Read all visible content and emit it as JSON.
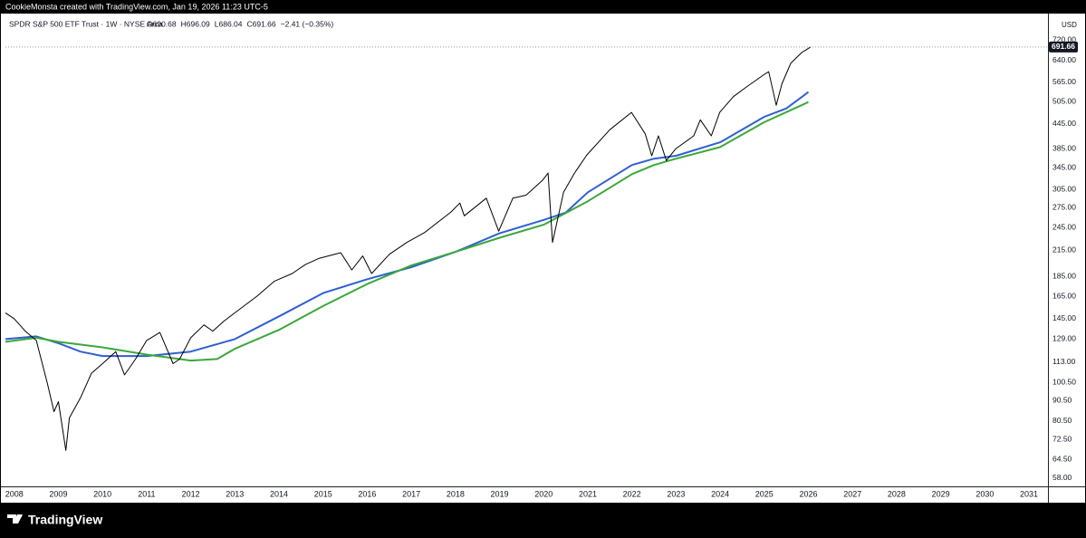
{
  "header": {
    "credit": "CookieMonsta created with TradingView.com, Jan 19, 2026 11:23 UTC-5"
  },
  "footer": {
    "brand": "TradingView"
  },
  "chart_data": {
    "type": "line",
    "title": "SPDR S&P 500 ETF Trust · 1W · NYSE Arca",
    "ohlc": [
      "O690.68",
      "H696.09",
      "L686.04",
      "C691.66",
      "−2.41 (−0.35%)"
    ],
    "currency": "USD",
    "last_price": {
      "value": 691.66,
      "label": "691.66"
    },
    "log_scale": true,
    "grid": false,
    "xlim": [
      2007.8,
      2031.43
    ],
    "xticks": [
      2008,
      2009,
      2010,
      2011,
      2012,
      2013,
      2014,
      2015,
      2016,
      2017,
      2018,
      2019,
      2020,
      2021,
      2022,
      2023,
      2024,
      2025,
      2026,
      2027,
      2028,
      2029,
      2030,
      2031
    ],
    "ylim": [
      55.3,
      834
    ],
    "yticks": [
      {
        "value": 58,
        "label": "58.00"
      },
      {
        "value": 64.5,
        "label": "64.50"
      },
      {
        "value": 72.5,
        "label": "72.50"
      },
      {
        "value": 80.5,
        "label": "80.50"
      },
      {
        "value": 90.5,
        "label": "90.50"
      },
      {
        "value": 100.5,
        "label": "100.50"
      },
      {
        "value": 113,
        "label": "113.00"
      },
      {
        "value": 129,
        "label": "129.00"
      },
      {
        "value": 145,
        "label": "145.00"
      },
      {
        "value": 165,
        "label": "165.00"
      },
      {
        "value": 185,
        "label": "185.00"
      },
      {
        "value": 215,
        "label": "215.00"
      },
      {
        "value": 245,
        "label": "245.00"
      },
      {
        "value": 275,
        "label": "275.00"
      },
      {
        "value": 305,
        "label": "305.00"
      },
      {
        "value": 345,
        "label": "345.00"
      },
      {
        "value": 385,
        "label": "385.00"
      },
      {
        "value": 445,
        "label": "445.00"
      },
      {
        "value": 505,
        "label": "505.00"
      },
      {
        "value": 565,
        "label": "565.00"
      },
      {
        "value": 640,
        "label": "640.00"
      },
      {
        "value": 720,
        "label": "720.00"
      }
    ],
    "series": [
      {
        "color": "#000000",
        "x": [
          2007.8,
          2008.0,
          2008.25,
          2008.5,
          2008.75,
          2008.9,
          2009.0,
          2009.17,
          2009.25,
          2009.5,
          2009.75,
          2010.0,
          2010.3,
          2010.5,
          2010.75,
          2011.0,
          2011.3,
          2011.6,
          2011.75,
          2012.0,
          2012.3,
          2012.5,
          2012.75,
          2013.0,
          2013.5,
          2013.9,
          2014.3,
          2014.6,
          2014.9,
          2015.4,
          2015.65,
          2015.9,
          2016.1,
          2016.5,
          2016.9,
          2017.3,
          2017.9,
          2018.1,
          2018.2,
          2018.7,
          2018.98,
          2019.3,
          2019.6,
          2019.98,
          2020.1,
          2020.2,
          2020.45,
          2020.7,
          2020.98,
          2021.5,
          2021.99,
          2022.3,
          2022.45,
          2022.6,
          2022.78,
          2022.99,
          2023.4,
          2023.55,
          2023.8,
          2023.99,
          2024.3,
          2024.6,
          2024.99,
          2025.1,
          2025.27,
          2025.4,
          2025.6,
          2025.85,
          2026.05
        ],
        "values": [
          150,
          145,
          135,
          128,
          100,
          85,
          90,
          68,
          82,
          92,
          106,
          112,
          120,
          105,
          115,
          128,
          134,
          112,
          115,
          130,
          140,
          135,
          143,
          150,
          165,
          180,
          188,
          198,
          205,
          212,
          192,
          208,
          188,
          210,
          225,
          238,
          268,
          282,
          262,
          290,
          240,
          290,
          295,
          322,
          335,
          225,
          300,
          335,
          372,
          430,
          475,
          420,
          370,
          415,
          360,
          385,
          415,
          455,
          415,
          475,
          520,
          550,
          590,
          600,
          495,
          560,
          630,
          670,
          691.66
        ]
      },
      {
        "color": "#2f5fd0",
        "x": [
          2007.8,
          2008.5,
          2009.0,
          2009.5,
          2010.0,
          2011.0,
          2012.0,
          2013.0,
          2014.0,
          2015.0,
          2016.0,
          2017.0,
          2018.0,
          2019.0,
          2020.0,
          2020.5,
          2021.0,
          2022.0,
          2022.5,
          2023.0,
          2024.0,
          2025.0,
          2025.5,
          2026.0
        ],
        "values": [
          129,
          131,
          126,
          120,
          117,
          117,
          120,
          129,
          147,
          168,
          182,
          195,
          213,
          237,
          256,
          267,
          300,
          351,
          364,
          370,
          400,
          463,
          486,
          534
        ]
      },
      {
        "color": "#3aa83a",
        "x": [
          2007.8,
          2008.5,
          2009.0,
          2010.0,
          2011.0,
          2011.5,
          2012.0,
          2012.6,
          2013.0,
          2014.0,
          2015.0,
          2016.0,
          2017.0,
          2018.0,
          2019.0,
          2020.0,
          2021.0,
          2022.0,
          2022.5,
          2023.0,
          2024.0,
          2025.0,
          2026.0
        ],
        "values": [
          127,
          130,
          127,
          123,
          118,
          116,
          114,
          115,
          122,
          136,
          156,
          177,
          197,
          213,
          231,
          249,
          285,
          333,
          351,
          364,
          389,
          449,
          504
        ]
      }
    ]
  }
}
